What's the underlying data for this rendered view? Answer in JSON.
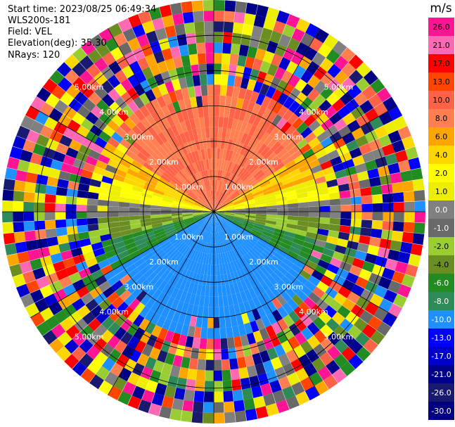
{
  "header": {
    "start_time": "Start time: 2023/08/25 06:49:34",
    "instrument": "WLS200s-181",
    "field": "Field: VEL",
    "elevation": "Elevation(deg): 35.30",
    "nrays": "NRays: 120"
  },
  "colorbar": {
    "unit": "m/s",
    "ticks": [
      "26.0",
      "21.0",
      "17.0",
      "13.0",
      "10.0",
      "8.0",
      "6.0",
      "4.0",
      "2.0",
      "1.0",
      "0.0",
      "-1.0",
      "-2.0",
      "-4.0",
      "-6.0",
      "-8.0",
      "-10.0",
      "-13.0",
      "-17.0",
      "-21.0",
      "-26.0",
      "-30.0"
    ],
    "colors": [
      "#ff1493",
      "#ff69b4",
      "#ff0000",
      "#ff4500",
      "#ff6347",
      "#ff7f50",
      "#ffa500",
      "#ffd700",
      "#ffff00",
      "#eeee00",
      "#808080",
      "#696969",
      "#9acd32",
      "#6b8e23",
      "#228b22",
      "#2e8b57",
      "#1e90ff",
      "#0000ff",
      "#0000cd",
      "#00008b",
      "#191970",
      "#000080"
    ]
  },
  "range_rings": {
    "labels": [
      "1.00km",
      "2.00km",
      "3.00km",
      "4.00km",
      "5.00km"
    ]
  },
  "velocity_field": {
    "nrays": 120,
    "ngates": 20,
    "gate_km": 0.3
  }
}
